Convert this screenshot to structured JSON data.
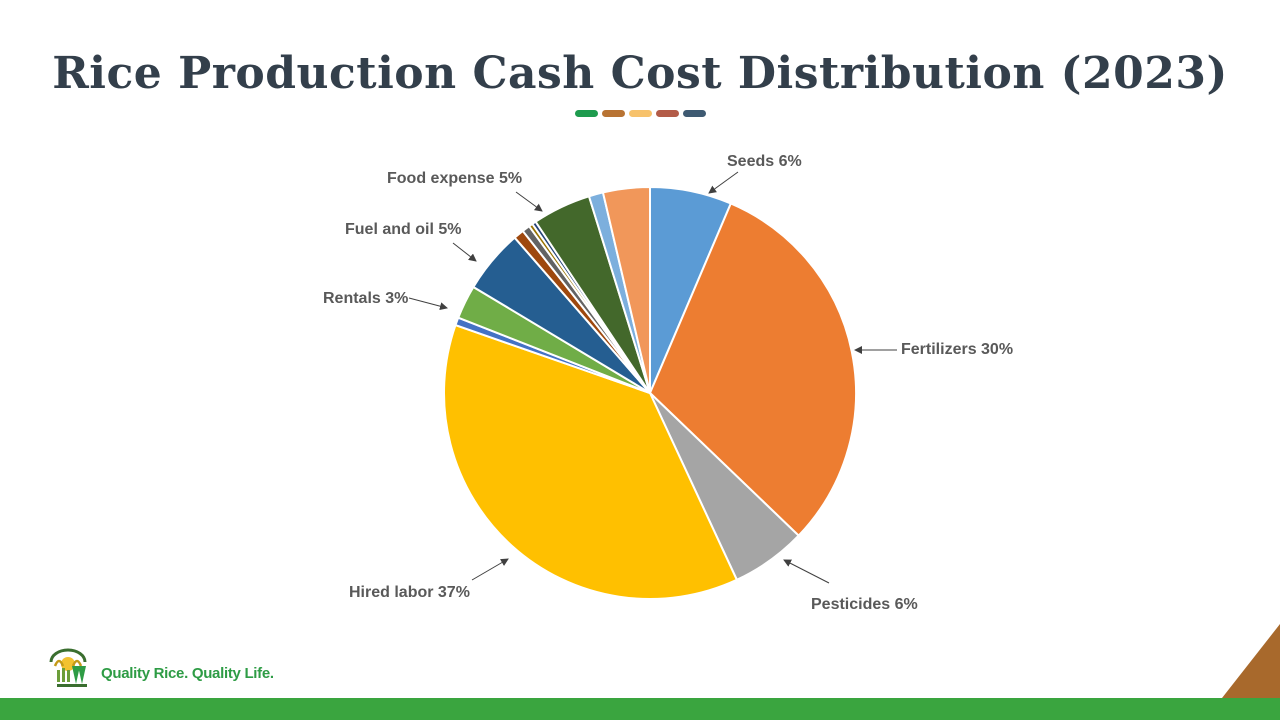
{
  "page": {
    "title": "Rice Production Cash Cost Distribution (2023)",
    "tagline": "Quality Rice. Quality Life.",
    "accent_dots": [
      "#1e9b4e",
      "#b87333",
      "#f7c26b",
      "#b35c48",
      "#3e5a72"
    ],
    "footer_color": "#3aa53f",
    "corner_color": "#a8692c",
    "logo_icon": "rice-logo-icon"
  },
  "chart_data": {
    "type": "pie",
    "title": "",
    "slices": [
      {
        "name": "Seeds",
        "value": 6.3,
        "color": "#5b9bd5",
        "label": "Seeds 6%"
      },
      {
        "name": "Fertilizers",
        "value": 30.2,
        "color": "#ed7d31",
        "label": "Fertilizers 30%"
      },
      {
        "name": "Pesticides",
        "value": 5.8,
        "color": "#a5a5a5",
        "label": "Pesticides 6%"
      },
      {
        "name": "Hired labor",
        "value": 36.6,
        "color": "#ffc000",
        "label": "Hired labor 37%"
      },
      {
        "name": "",
        "value": 0.6,
        "color": "#4472c4",
        "label": ""
      },
      {
        "name": "Rentals",
        "value": 2.6,
        "color": "#70ad47",
        "label": "Rentals 3%"
      },
      {
        "name": "Fuel and oil",
        "value": 4.9,
        "color": "#255e91",
        "label": "Fuel and oil 5%"
      },
      {
        "name": "",
        "value": 0.8,
        "color": "#9e480e",
        "label": ""
      },
      {
        "name": "",
        "value": 0.6,
        "color": "#636363",
        "label": ""
      },
      {
        "name": "",
        "value": 0.3,
        "color": "#997300",
        "label": ""
      },
      {
        "name": "",
        "value": 0.3,
        "color": "#264478",
        "label": ""
      },
      {
        "name": "Food expense",
        "value": 4.5,
        "color": "#43682b",
        "label": "Food expense 5%"
      },
      {
        "name": "",
        "value": 1.1,
        "color": "#7cafdd",
        "label": ""
      },
      {
        "name": "",
        "value": 3.6,
        "color": "#f1975a",
        "label": ""
      }
    ]
  }
}
